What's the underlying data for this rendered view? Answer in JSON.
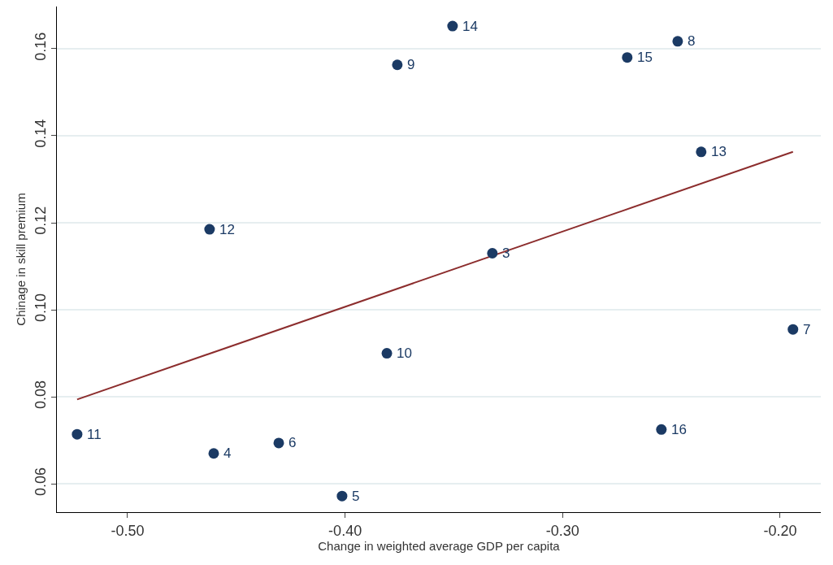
{
  "chart_data": {
    "type": "scatter",
    "xlabel": "Change in weighted average GDP per capita",
    "ylabel": "Chinage in skill premium",
    "xlim": [
      -0.5325,
      -0.1813
    ],
    "ylim": [
      0.0535,
      0.1697
    ],
    "xticks": [
      {
        "value": -0.5,
        "label": "-0.50"
      },
      {
        "value": -0.4,
        "label": "-0.40"
      },
      {
        "value": -0.3,
        "label": "-0.30"
      },
      {
        "value": -0.2,
        "label": "-0.20"
      }
    ],
    "yticks": [
      {
        "value": 0.06,
        "label": "0.06"
      },
      {
        "value": 0.08,
        "label": "0.08"
      },
      {
        "value": 0.1,
        "label": "0.10"
      },
      {
        "value": 0.12,
        "label": "0.12"
      },
      {
        "value": 0.14,
        "label": "0.14"
      },
      {
        "value": 0.16,
        "label": "0.16"
      }
    ],
    "grid": "y",
    "marker": "circle",
    "series": [
      {
        "color": "#1b3a64",
        "x": [
          -0.3506,
          -0.2471,
          -0.2703,
          -0.376,
          -0.2363,
          -0.4623,
          -0.3323,
          -0.1941,
          -0.3808,
          -0.5232,
          -0.2546,
          -0.4604,
          -0.4305,
          -0.4014
        ],
        "values": [
          0.1652,
          0.1617,
          0.158,
          0.1563,
          0.1363,
          0.1185,
          0.113,
          0.0955,
          0.09,
          0.0714,
          0.0725,
          0.067,
          0.0694,
          0.0572
        ]
      },
      {
        "type": "line",
        "marker": "none",
        "color": "#8c2d2d",
        "line_style": "solid",
        "x": [
          -0.5232,
          -0.1941
        ],
        "values": [
          0.0794,
          0.1363
        ]
      }
    ],
    "annotations": [
      {
        "text": "14",
        "x": -0.3506,
        "y": 0.1652
      },
      {
        "text": "8",
        "x": -0.2471,
        "y": 0.1617
      },
      {
        "text": "15",
        "x": -0.2703,
        "y": 0.158
      },
      {
        "text": "9",
        "x": -0.376,
        "y": 0.1563
      },
      {
        "text": "13",
        "x": -0.2363,
        "y": 0.1363
      },
      {
        "text": "12",
        "x": -0.4623,
        "y": 0.1185
      },
      {
        "text": "3",
        "x": -0.3323,
        "y": 0.113
      },
      {
        "text": "7",
        "x": -0.1941,
        "y": 0.0955
      },
      {
        "text": "10",
        "x": -0.3808,
        "y": 0.09
      },
      {
        "text": "11",
        "x": -0.5232,
        "y": 0.0714
      },
      {
        "text": "16",
        "x": -0.2546,
        "y": 0.0725
      },
      {
        "text": "4",
        "x": -0.4604,
        "y": 0.067
      },
      {
        "text": "6",
        "x": -0.4305,
        "y": 0.0694
      },
      {
        "text": "5",
        "x": -0.4014,
        "y": 0.0572
      }
    ]
  }
}
